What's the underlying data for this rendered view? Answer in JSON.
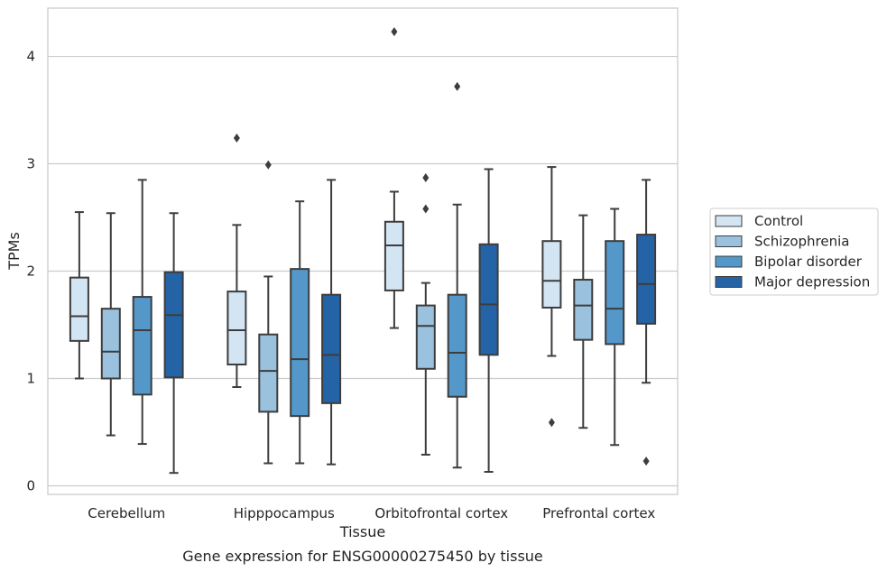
{
  "chart_data": {
    "type": "boxplot",
    "caption": "Gene expression for ENSG00000275450 by tissue",
    "xlabel": "Tissue",
    "ylabel": "TPMs",
    "ylim": [
      -0.08,
      4.45
    ],
    "yticks": [
      0,
      1,
      2,
      3,
      4
    ],
    "grid": "horizontal",
    "legend_position": "right",
    "categories": [
      "Cerebellum",
      "Hipppocampus",
      "Orbitofrontal cortex",
      "Prefrontal cortex"
    ],
    "series": [
      {
        "name": "Control",
        "color": "#d3e4f3",
        "boxes": [
          {
            "whisker_low": 1.0,
            "q1": 1.35,
            "median": 1.58,
            "q3": 1.94,
            "whisker_high": 2.55,
            "outliers": []
          },
          {
            "whisker_low": 0.92,
            "q1": 1.13,
            "median": 1.45,
            "q3": 1.81,
            "whisker_high": 2.43,
            "outliers": [
              3.24
            ]
          },
          {
            "whisker_low": 1.47,
            "q1": 1.82,
            "median": 2.24,
            "q3": 2.46,
            "whisker_high": 2.74,
            "outliers": [
              4.23
            ]
          },
          {
            "whisker_low": 1.21,
            "q1": 1.66,
            "median": 1.91,
            "q3": 2.28,
            "whisker_high": 2.97,
            "outliers": [
              0.59
            ]
          }
        ]
      },
      {
        "name": "Schizophrenia",
        "color": "#9ac1de",
        "boxes": [
          {
            "whisker_low": 0.47,
            "q1": 1.0,
            "median": 1.25,
            "q3": 1.65,
            "whisker_high": 2.54,
            "outliers": []
          },
          {
            "whisker_low": 0.21,
            "q1": 0.69,
            "median": 1.07,
            "q3": 1.41,
            "whisker_high": 1.95,
            "outliers": [
              2.99
            ]
          },
          {
            "whisker_low": 0.29,
            "q1": 1.09,
            "median": 1.49,
            "q3": 1.68,
            "whisker_high": 1.89,
            "outliers": [
              2.87,
              2.58
            ]
          },
          {
            "whisker_low": 0.54,
            "q1": 1.36,
            "median": 1.68,
            "q3": 1.92,
            "whisker_high": 2.52,
            "outliers": []
          }
        ]
      },
      {
        "name": "Bipolar disorder",
        "color": "#5497c9",
        "boxes": [
          {
            "whisker_low": 0.39,
            "q1": 0.85,
            "median": 1.45,
            "q3": 1.76,
            "whisker_high": 2.85,
            "outliers": []
          },
          {
            "whisker_low": 0.21,
            "q1": 0.65,
            "median": 1.18,
            "q3": 2.02,
            "whisker_high": 2.65,
            "outliers": []
          },
          {
            "whisker_low": 0.17,
            "q1": 0.83,
            "median": 1.24,
            "q3": 1.78,
            "whisker_high": 2.62,
            "outliers": [
              3.72
            ]
          },
          {
            "whisker_low": 0.38,
            "q1": 1.32,
            "median": 1.65,
            "q3": 2.28,
            "whisker_high": 2.58,
            "outliers": []
          }
        ]
      },
      {
        "name": "Major depression",
        "color": "#2463a6",
        "boxes": [
          {
            "whisker_low": 0.12,
            "q1": 1.01,
            "median": 1.59,
            "q3": 1.99,
            "whisker_high": 2.54,
            "outliers": []
          },
          {
            "whisker_low": 0.2,
            "q1": 0.77,
            "median": 1.22,
            "q3": 1.78,
            "whisker_high": 2.85,
            "outliers": []
          },
          {
            "whisker_low": 0.13,
            "q1": 1.22,
            "median": 1.69,
            "q3": 2.25,
            "whisker_high": 2.95,
            "outliers": []
          },
          {
            "whisker_low": 0.96,
            "q1": 1.51,
            "median": 1.88,
            "q3": 2.34,
            "whisker_high": 2.85,
            "outliers": [
              0.23
            ]
          }
        ]
      }
    ]
  }
}
